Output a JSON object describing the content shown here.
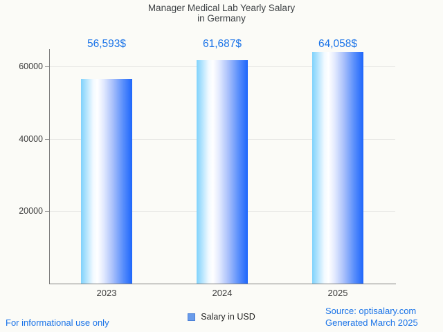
{
  "chart": {
    "title_line1": "Manager Medical Lab Yearly Salary",
    "title_line2": "in Germany"
  },
  "chart_data": {
    "type": "bar",
    "title": "Manager Medical Lab Yearly Salary in Germany",
    "categories": [
      "2023",
      "2024",
      "2025"
    ],
    "series": [
      {
        "name": "Salary in USD",
        "values": [
          56593,
          61687,
          64058
        ]
      }
    ],
    "value_labels": [
      "56,593$",
      "61,687$",
      "64,058$"
    ],
    "xlabel": "",
    "ylabel": "",
    "yticks": [
      20000,
      40000,
      60000
    ],
    "ytick_labels": [
      "20000",
      "40000",
      "60000"
    ],
    "ylim": [
      0,
      64800
    ],
    "grid": true,
    "legend_position": "bottom",
    "bar_gradient": [
      "#7fd2fc",
      "#ffffff",
      "#1e66fb"
    ],
    "annotation_color": "#1a73e8"
  },
  "legend": {
    "label": "Salary in USD",
    "swatch_color": "#699bea"
  },
  "footer": {
    "disclaimer": "For informational use only",
    "source": "Source: optisalary.com",
    "generated": "Generated March 2025"
  },
  "colors": {
    "background": "#fbfbf7",
    "title_text": "#3c4043",
    "axis_line": "#7e7e7e",
    "gridline": "#e6e6e3",
    "accent_blue": "#1a73e8"
  }
}
